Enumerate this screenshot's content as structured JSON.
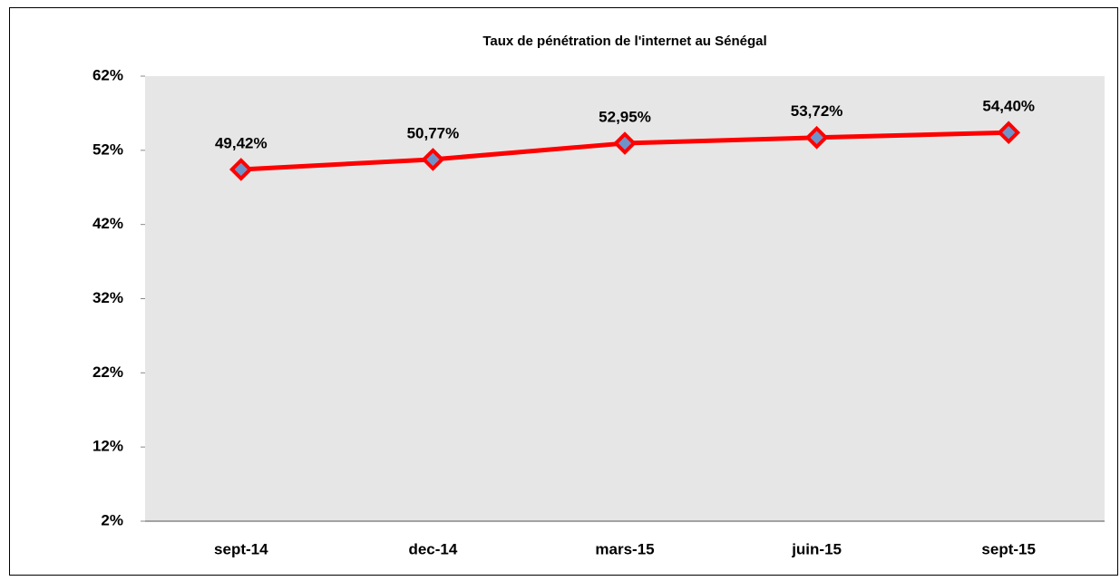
{
  "chart_data": {
    "type": "line",
    "title": "Taux de pénétration de l'internet au Sénégal",
    "categories": [
      "sept-14",
      "dec-14",
      "mars-15",
      "juin-15",
      "sept-15"
    ],
    "values": [
      49.42,
      50.77,
      52.95,
      53.72,
      54.4
    ],
    "value_labels": [
      "49,42%",
      "50,77%",
      "52,95%",
      "53,72%",
      "54,40%"
    ],
    "color": "#ff0000",
    "marker_color": "#6f93c9",
    "ylim": [
      2,
      62
    ],
    "yticks": [
      {
        "value": 2,
        "label": "2%"
      },
      {
        "value": 12,
        "label": "12%"
      },
      {
        "value": 22,
        "label": "22%"
      },
      {
        "value": 32,
        "label": "32%"
      },
      {
        "value": 42,
        "label": "42%"
      },
      {
        "value": 52,
        "label": "52%"
      },
      {
        "value": 62,
        "label": "62%"
      }
    ]
  }
}
